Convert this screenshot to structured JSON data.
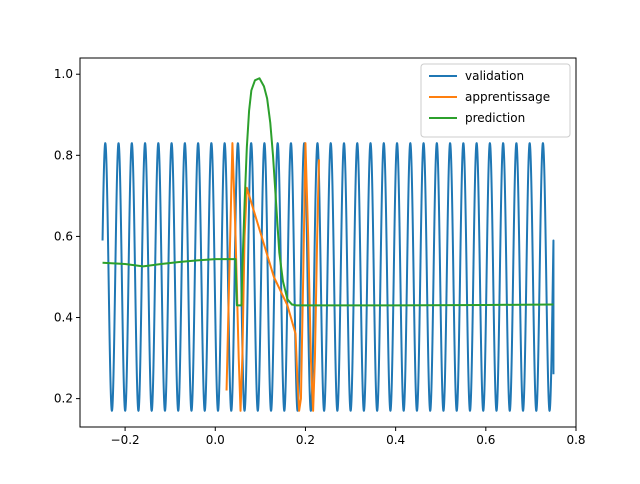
{
  "chart_data": {
    "type": "line",
    "title": "",
    "xlabel": "",
    "ylabel": "",
    "xlim": [
      -0.3,
      0.8
    ],
    "ylim": [
      0.13,
      1.04
    ],
    "grid": false,
    "legend_position": "top-right",
    "x_ticks": [
      -0.2,
      0.0,
      0.2,
      0.4,
      0.6,
      0.8
    ],
    "x_tick_labels": [
      "−0.2",
      "0.0",
      "0.2",
      "0.4",
      "0.6",
      "0.8"
    ],
    "y_ticks": [
      0.2,
      0.4,
      0.6,
      0.8,
      1.0
    ],
    "y_tick_labels": [
      "0.2",
      "0.4",
      "0.6",
      "0.8",
      "1.0"
    ],
    "series": [
      {
        "name": "validation",
        "color": "#1f77b4",
        "style": "oscillation",
        "x_start": -0.25,
        "x_end": 0.75,
        "y_min": 0.17,
        "y_max": 0.83,
        "cycles": 34,
        "y_first": 0.59,
        "y_last": 0.26
      },
      {
        "name": "apprentissage",
        "color": "#ff7f0e",
        "points": [
          [
            0.025,
            0.22
          ],
          [
            0.032,
            0.55
          ],
          [
            0.038,
            0.83
          ],
          [
            0.045,
            0.6
          ],
          [
            0.052,
            0.3
          ],
          [
            0.056,
            0.17
          ],
          [
            0.06,
            0.3
          ],
          [
            0.065,
            0.6
          ],
          [
            0.07,
            0.72
          ],
          [
            0.1,
            0.61
          ],
          [
            0.13,
            0.5
          ],
          [
            0.16,
            0.43
          ],
          [
            0.178,
            0.36
          ],
          [
            0.182,
            0.25
          ],
          [
            0.186,
            0.17
          ],
          [
            0.19,
            0.2
          ],
          [
            0.195,
            0.5
          ],
          [
            0.2,
            0.83
          ],
          [
            0.206,
            0.6
          ],
          [
            0.212,
            0.3
          ],
          [
            0.217,
            0.17
          ],
          [
            0.221,
            0.3
          ],
          [
            0.226,
            0.6
          ],
          [
            0.23,
            0.79
          ]
        ]
      },
      {
        "name": "prediction",
        "color": "#2ca02c",
        "points": [
          [
            -0.25,
            0.535
          ],
          [
            -0.2,
            0.532
          ],
          [
            -0.16,
            0.526
          ],
          [
            -0.12,
            0.532
          ],
          [
            -0.08,
            0.537
          ],
          [
            -0.04,
            0.541
          ],
          [
            0.0,
            0.544
          ],
          [
            0.045,
            0.544
          ],
          [
            0.048,
            0.43
          ],
          [
            0.058,
            0.43
          ],
          [
            0.06,
            0.52
          ],
          [
            0.065,
            0.68
          ],
          [
            0.07,
            0.82
          ],
          [
            0.075,
            0.91
          ],
          [
            0.08,
            0.96
          ],
          [
            0.088,
            0.985
          ],
          [
            0.098,
            0.99
          ],
          [
            0.108,
            0.97
          ],
          [
            0.115,
            0.94
          ],
          [
            0.122,
            0.88
          ],
          [
            0.128,
            0.8
          ],
          [
            0.135,
            0.68
          ],
          [
            0.142,
            0.56
          ],
          [
            0.15,
            0.49
          ],
          [
            0.16,
            0.445
          ],
          [
            0.17,
            0.432
          ],
          [
            0.18,
            0.43
          ],
          [
            0.4,
            0.43
          ],
          [
            0.6,
            0.431
          ],
          [
            0.75,
            0.432
          ]
        ]
      }
    ]
  }
}
